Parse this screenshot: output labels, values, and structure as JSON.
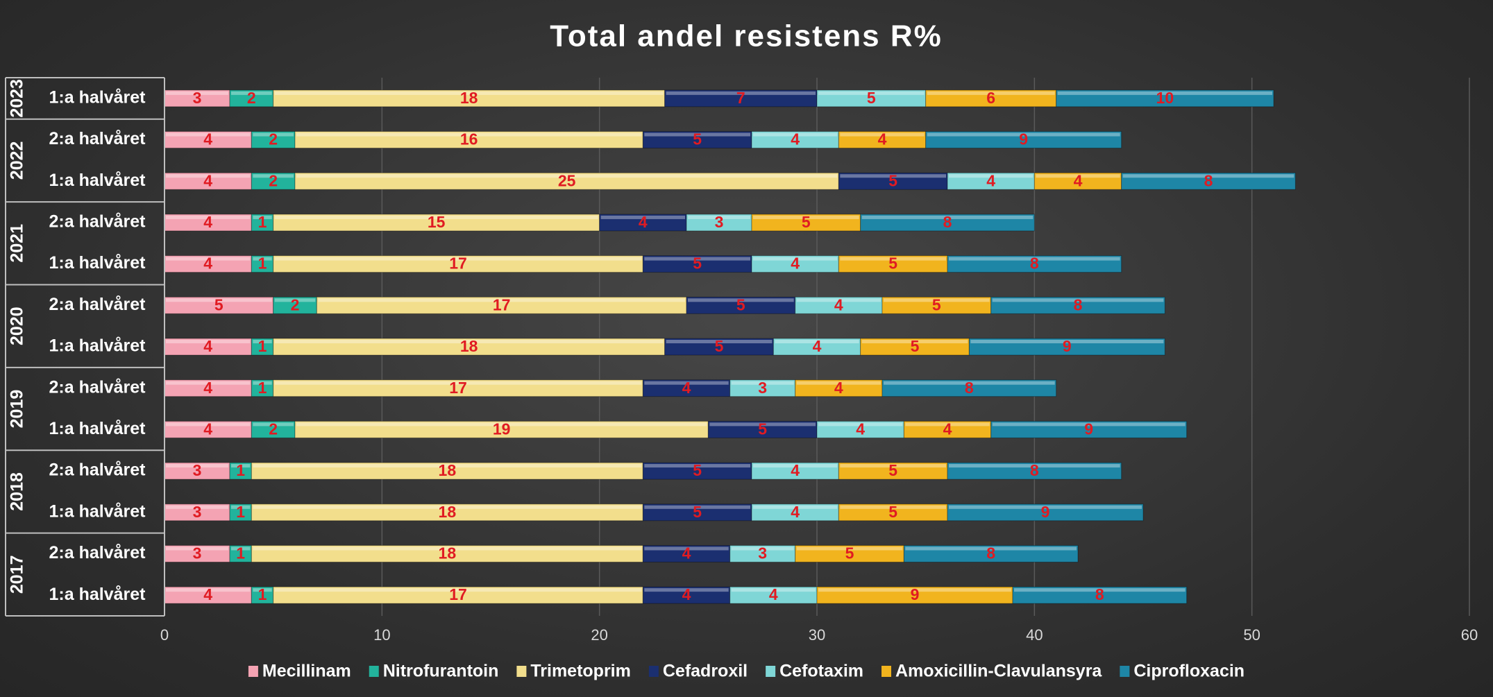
{
  "chart_data": {
    "type": "stacked_bar_horizontal",
    "title": "Total andel resistens R%",
    "groups": [
      {
        "name": "2023",
        "categories": [
          "1:a halvåret"
        ]
      },
      {
        "name": "2022",
        "categories": [
          "2:a halvåret",
          "1:a halvåret"
        ]
      },
      {
        "name": "2021",
        "categories": [
          "2:a halvåret",
          "1:a halvåret"
        ]
      },
      {
        "name": "2020",
        "categories": [
          "2:a halvåret",
          "1:a halvåret"
        ]
      },
      {
        "name": "2019",
        "categories": [
          "2:a halvåret",
          "1:a halvåret"
        ]
      },
      {
        "name": "2018",
        "categories": [
          "2:a halvåret",
          "1:a halvåret"
        ]
      },
      {
        "name": "2017",
        "categories": [
          "2:a halvåret",
          "1:a halvåret"
        ]
      }
    ],
    "series": [
      {
        "name": "Mecillinam",
        "color": "#f4a3b3",
        "values": [
          3,
          4,
          4,
          4,
          4,
          5,
          4,
          4,
          4,
          3,
          3,
          3,
          4
        ]
      },
      {
        "name": "Nitrofurantoin",
        "color": "#22b39c",
        "values": [
          2,
          2,
          2,
          1,
          1,
          2,
          1,
          1,
          2,
          1,
          1,
          1,
          1
        ]
      },
      {
        "name": "Trimetoprim",
        "color": "#f2de8c",
        "values": [
          18,
          16,
          25,
          15,
          17,
          17,
          18,
          17,
          19,
          18,
          18,
          18,
          17
        ]
      },
      {
        "name": "Cefadroxil",
        "color": "#1b2f70",
        "values": [
          7,
          5,
          5,
          4,
          5,
          5,
          5,
          4,
          5,
          5,
          5,
          4,
          4
        ]
      },
      {
        "name": "Cefotaxim",
        "color": "#7fd6d6",
        "values": [
          5,
          4,
          4,
          3,
          4,
          4,
          4,
          3,
          4,
          4,
          4,
          3,
          4
        ]
      },
      {
        "name": "Amoxicillin-Clavulansyra",
        "color": "#f1b41e",
        "values": [
          6,
          4,
          4,
          5,
          5,
          5,
          5,
          4,
          4,
          5,
          5,
          5,
          9
        ]
      },
      {
        "name": "Ciprofloxacin",
        "color": "#1e86a6",
        "values": [
          10,
          9,
          8,
          8,
          8,
          8,
          9,
          8,
          9,
          8,
          9,
          8,
          8
        ]
      }
    ],
    "xlim": [
      0,
      60
    ],
    "xticks": [
      0,
      10,
      20,
      30,
      40,
      50,
      60
    ],
    "grid": true,
    "legend": "bottom",
    "label_color": "#e01b22"
  }
}
